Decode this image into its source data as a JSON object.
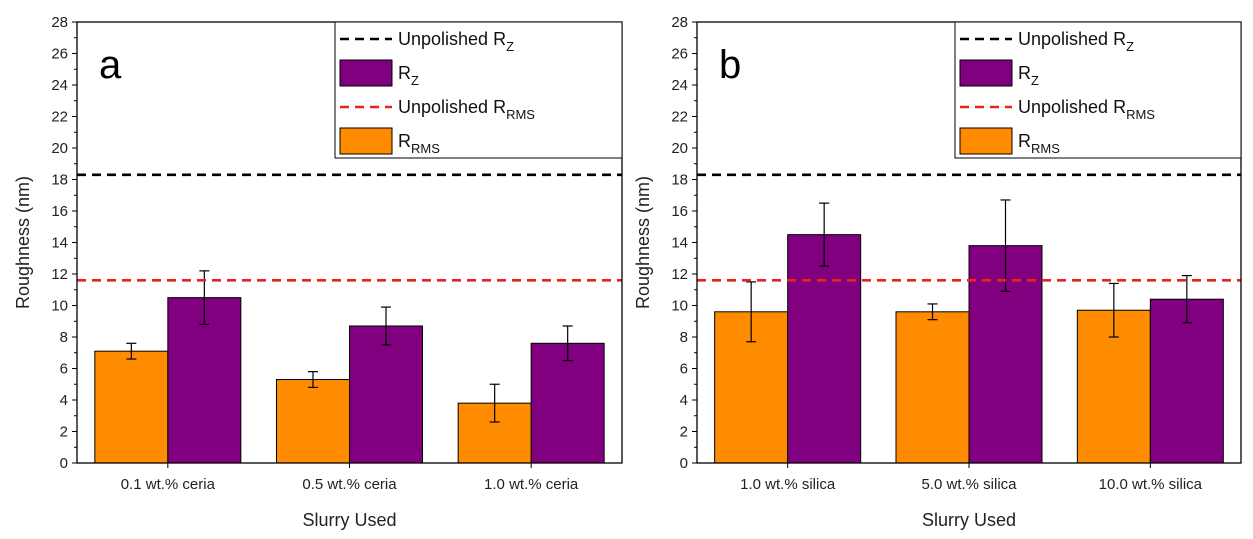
{
  "chart_data": [
    {
      "type": "bar",
      "panel_label": "a",
      "xlabel": "Slurry Used",
      "ylabel": "Roughness (nm)",
      "ylim": [
        0,
        28
      ],
      "yticks": [
        "0",
        "2",
        "4",
        "6",
        "8",
        "10",
        "12",
        "14",
        "16",
        "18",
        "20",
        "22",
        "24",
        "26",
        "28"
      ],
      "categories": [
        "0.1 wt.% ceria",
        "0.5 wt.% ceria",
        "1.0 wt.% ceria"
      ],
      "series": [
        {
          "key": "rrms",
          "color": "#FF8C00",
          "values": [
            7.1,
            5.3,
            3.8
          ],
          "errors": [
            0.5,
            0.5,
            1.2
          ]
        },
        {
          "key": "rz",
          "color": "#800080",
          "values": [
            10.5,
            8.7,
            7.6
          ],
          "errors": [
            1.7,
            1.2,
            1.1
          ]
        }
      ],
      "reference_lines": [
        {
          "key": "unpolished_rz",
          "value": 18.3,
          "color": "#000000"
        },
        {
          "key": "unpolished_rrms",
          "value": 11.6,
          "color": "#E8231E"
        }
      ],
      "legend": {
        "position": "top-right",
        "entries": [
          {
            "base": "Unpolished R",
            "sub": "Z",
            "kind": "dash",
            "color": "#000000"
          },
          {
            "base": "R",
            "sub": "Z",
            "kind": "box",
            "color": "#800080"
          },
          {
            "base": "Unpolished R",
            "sub": "RMS",
            "kind": "dash",
            "color": "#E8231E"
          },
          {
            "base": "R",
            "sub": "RMS",
            "kind": "box",
            "color": "#FF8C00"
          }
        ]
      }
    },
    {
      "type": "bar",
      "panel_label": "b",
      "xlabel": "Slurry Used",
      "ylabel": "Roughness (nm)",
      "ylim": [
        0,
        28
      ],
      "yticks": [
        "0",
        "2",
        "4",
        "6",
        "8",
        "10",
        "12",
        "14",
        "16",
        "18",
        "20",
        "22",
        "24",
        "26",
        "28"
      ],
      "categories": [
        "1.0 wt.% silica",
        "5.0 wt.% silica",
        "10.0 wt.% silica"
      ],
      "series": [
        {
          "key": "rrms",
          "color": "#FF8C00",
          "values": [
            9.6,
            9.6,
            9.7
          ],
          "errors": [
            1.9,
            0.5,
            1.7
          ]
        },
        {
          "key": "rz",
          "color": "#800080",
          "values": [
            14.5,
            13.8,
            10.4
          ],
          "errors": [
            2.0,
            2.9,
            1.5
          ]
        }
      ],
      "reference_lines": [
        {
          "key": "unpolished_rz",
          "value": 18.3,
          "color": "#000000"
        },
        {
          "key": "unpolished_rrms",
          "value": 11.6,
          "color": "#E8231E"
        }
      ],
      "legend": {
        "position": "top-right",
        "entries": [
          {
            "base": "Unpolished R",
            "sub": "Z",
            "kind": "dash",
            "color": "#000000"
          },
          {
            "base": "R",
            "sub": "Z",
            "kind": "box",
            "color": "#800080"
          },
          {
            "base": "Unpolished R",
            "sub": "RMS",
            "kind": "dash",
            "color": "#E8231E"
          },
          {
            "base": "R",
            "sub": "RMS",
            "kind": "box",
            "color": "#FF8C00"
          }
        ]
      }
    }
  ]
}
